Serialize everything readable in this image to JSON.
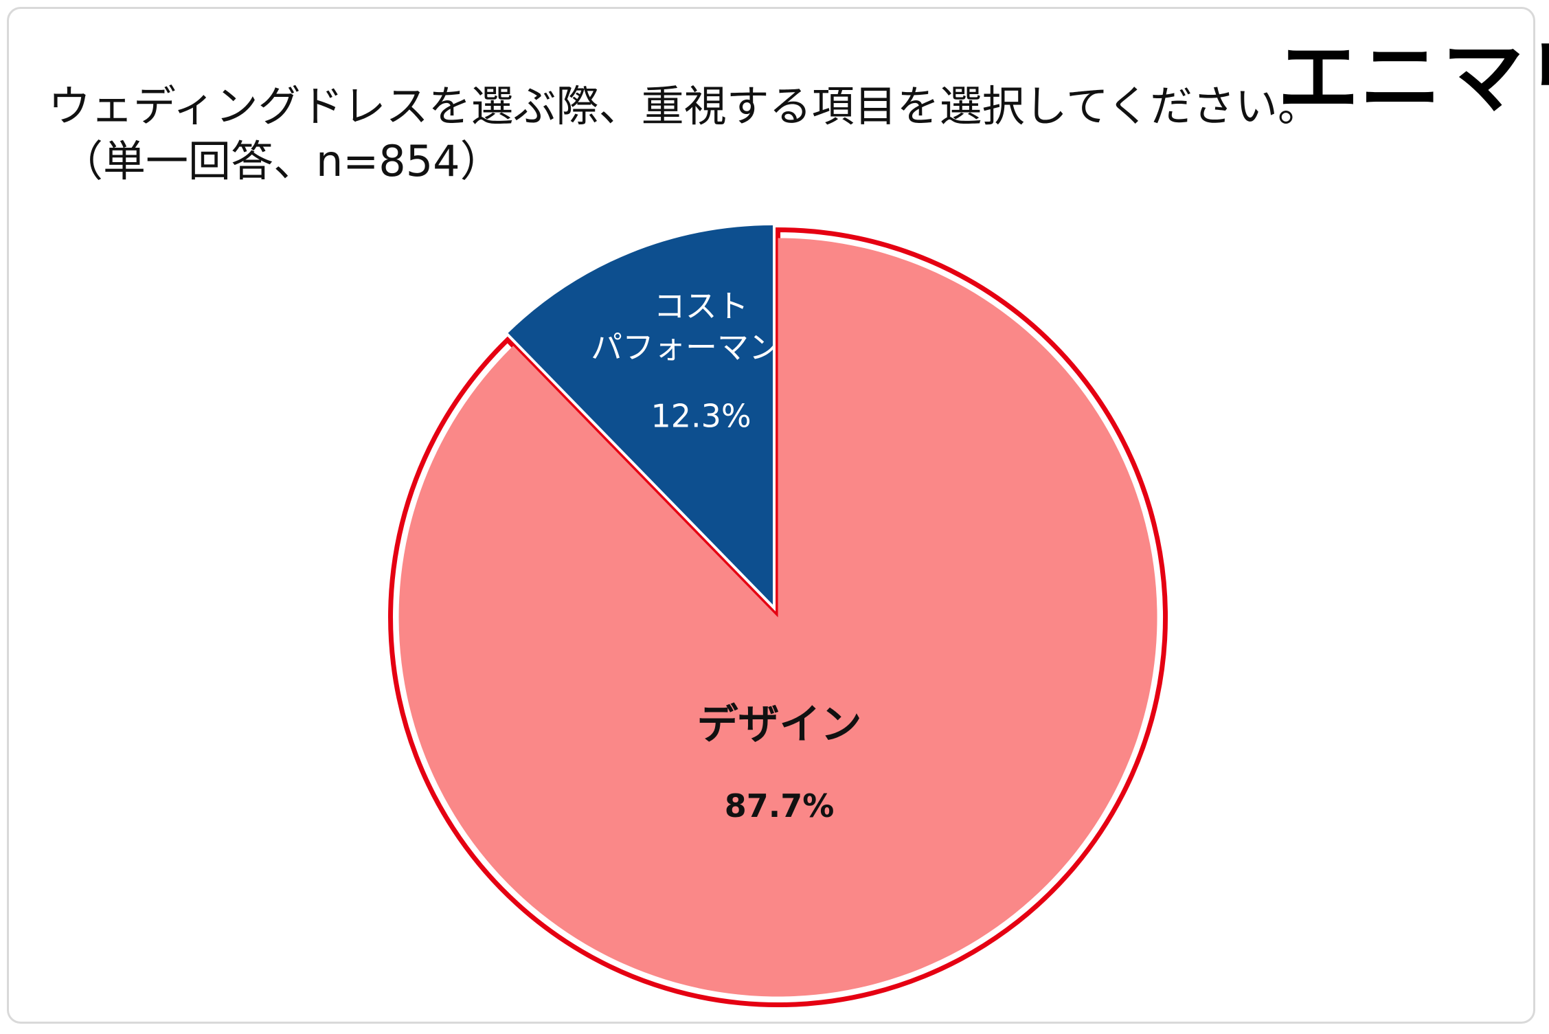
{
  "header": {
    "title": "ウェディングドレスを選ぶ際、重視する項目を選択してください。",
    "subtitle": "（単一回答、n=854）",
    "logo": "エニマリ"
  },
  "chart_data": {
    "type": "pie",
    "title": "ウェディングドレスを選ぶ際、重視する項目を選択してください。",
    "subtitle": "（単一回答、n=854）",
    "n": 854,
    "slices": [
      {
        "label_lines": [
          "デザイン"
        ],
        "value": 87.7,
        "value_label": "87.7%",
        "color": "#fa8888",
        "label_color": "#111111",
        "outline_color": "#e50012",
        "highlighted": true,
        "label_bold": true
      },
      {
        "label_lines": [
          "コスト",
          "パフォーマンス"
        ],
        "value": 12.3,
        "value_label": "12.3%",
        "color": "#0d4f8f",
        "label_color": "#ffffff",
        "highlighted": false,
        "label_bold": false
      }
    ],
    "legend": "none",
    "start": "12 o'clock",
    "direction": "clockwise"
  }
}
